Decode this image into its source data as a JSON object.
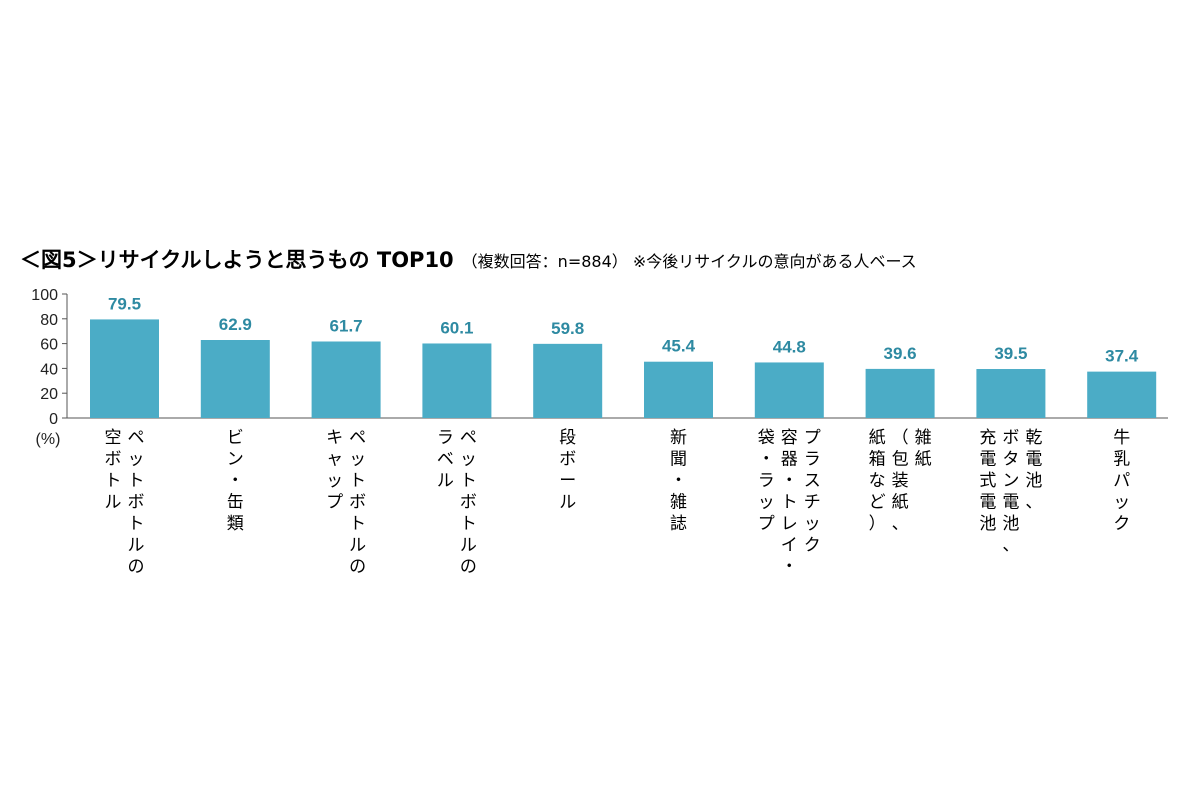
{
  "chart_data": {
    "type": "bar",
    "title": "＜図5＞リサイクルしようと思うもの TOP10",
    "subtitle": "（複数回答：n=884） ※今後リサイクルの意向がある人ベース",
    "ylabel": "(%)",
    "ylim": [
      0,
      100
    ],
    "yticks": [
      0,
      20,
      40,
      60,
      80,
      100
    ],
    "bar_color": "#4bacc6",
    "value_label_color": "#2e8aa2",
    "grid": false,
    "categories": [
      [
        "ペットボトルの",
        "空ボトル"
      ],
      [
        "ビン・缶類"
      ],
      [
        "ペットボトルの",
        "キャップ"
      ],
      [
        "ペットボトルの",
        "ラベル"
      ],
      [
        "段ボール"
      ],
      [
        "新聞・雑誌"
      ],
      [
        "プラスチック",
        "容器・トレイ・",
        "袋・ラップ"
      ],
      [
        "雑紙",
        "（包装紙、",
        "紙箱など）"
      ],
      [
        "乾電池、",
        "ボタン電池、",
        "充電式電池"
      ],
      [
        "牛乳パック"
      ]
    ],
    "values": [
      79.5,
      62.9,
      61.7,
      60.1,
      59.8,
      45.4,
      44.8,
      39.6,
      39.5,
      37.4
    ]
  }
}
